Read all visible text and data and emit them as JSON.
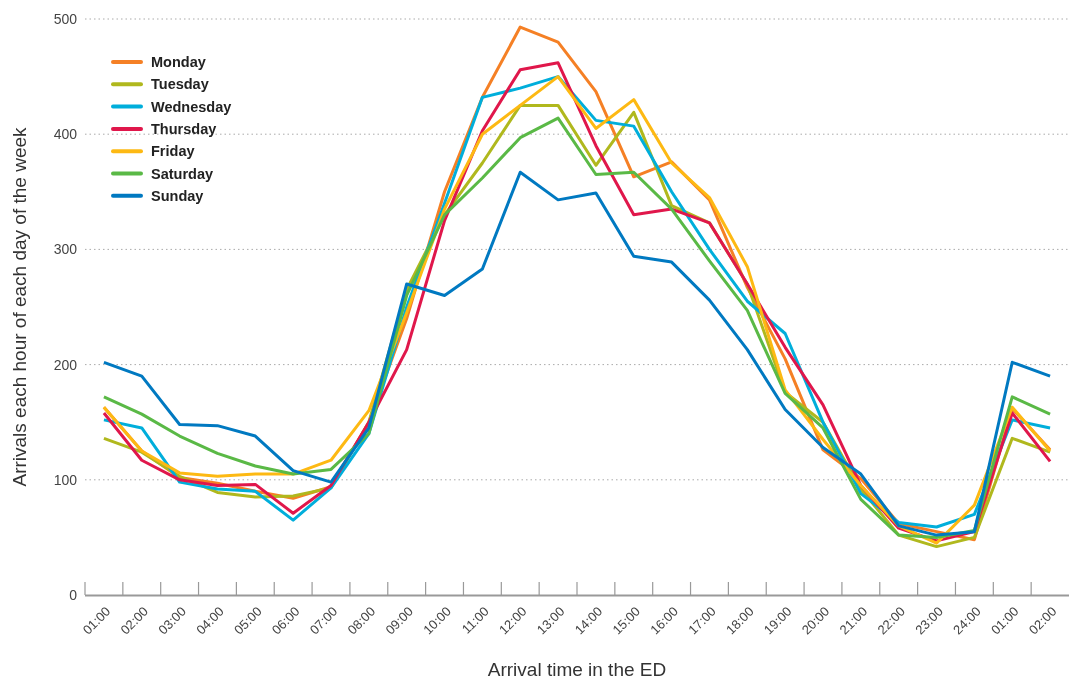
{
  "chart_data": {
    "type": "line",
    "xlabel": "Arrival time in the ED",
    "ylabel": "Arrivals each hour of each day of the week",
    "categories": [
      "01:00",
      "02:00",
      "03:00",
      "04:00",
      "05:00",
      "06:00",
      "07:00",
      "08:00",
      "09:00",
      "10:00",
      "11:00",
      "12:00",
      "13:00",
      "14:00",
      "15:00",
      "16:00",
      "17:00",
      "18:00",
      "19:00",
      "20:00",
      "21:00",
      "22:00",
      "23:00",
      "24:00",
      "01:00",
      "02:00"
    ],
    "ylim": [
      0,
      500
    ],
    "yticks": [
      0,
      100,
      200,
      300,
      400,
      500
    ],
    "grid": "y",
    "legend": "top left",
    "marker": "none",
    "line_style": "solid",
    "series": [
      {
        "name": "Monday",
        "color": "#f58025",
        "values": [
          163,
          125,
          102,
          97,
          90,
          84,
          94,
          150,
          240,
          350,
          432,
          493,
          480,
          437,
          363,
          376,
          343,
          267,
          205,
          126,
          101,
          62,
          55,
          48,
          162,
          126
        ]
      },
      {
        "name": "Tuesday",
        "color": "#b0b81d",
        "values": [
          136,
          124,
          103,
          89,
          85,
          86,
          93,
          150,
          265,
          330,
          375,
          425,
          425,
          373,
          419,
          338,
          323,
          270,
          176,
          150,
          92,
          52,
          42,
          50,
          136,
          124
        ]
      },
      {
        "name": "Wednesday",
        "color": "#00aedb",
        "values": [
          152,
          145,
          98,
          92,
          90,
          65,
          93,
          140,
          250,
          340,
          432,
          440,
          450,
          412,
          407,
          350,
          300,
          255,
          227,
          150,
          88,
          63,
          59,
          70,
          152,
          145
        ]
      },
      {
        "name": "Thursday",
        "color": "#e0174b",
        "values": [
          158,
          117,
          100,
          95,
          96,
          71,
          95,
          150,
          213,
          325,
          403,
          456,
          462,
          390,
          330,
          335,
          323,
          270,
          215,
          165,
          95,
          58,
          47,
          55,
          158,
          116
        ]
      },
      {
        "name": "Friday",
        "color": "#fdb913",
        "values": [
          163,
          125,
          106,
          103,
          105,
          105,
          117,
          160,
          245,
          335,
          400,
          425,
          450,
          405,
          430,
          375,
          345,
          285,
          178,
          135,
          95,
          60,
          45,
          78,
          163,
          125
        ]
      },
      {
        "name": "Saturday",
        "color": "#5ab946",
        "values": [
          172,
          157,
          138,
          123,
          112,
          105,
          109,
          140,
          260,
          330,
          362,
          397,
          414,
          365,
          367,
          335,
          290,
          247,
          175,
          145,
          83,
          52,
          50,
          56,
          172,
          157
        ]
      },
      {
        "name": "Sunday",
        "color": "#0079c1",
        "values": [
          202,
          190,
          148,
          147,
          138,
          108,
          98,
          145,
          270,
          260,
          283,
          367,
          343,
          349,
          294,
          289,
          256,
          213,
          161,
          128,
          105,
          60,
          52,
          55,
          202,
          190
        ]
      }
    ]
  }
}
